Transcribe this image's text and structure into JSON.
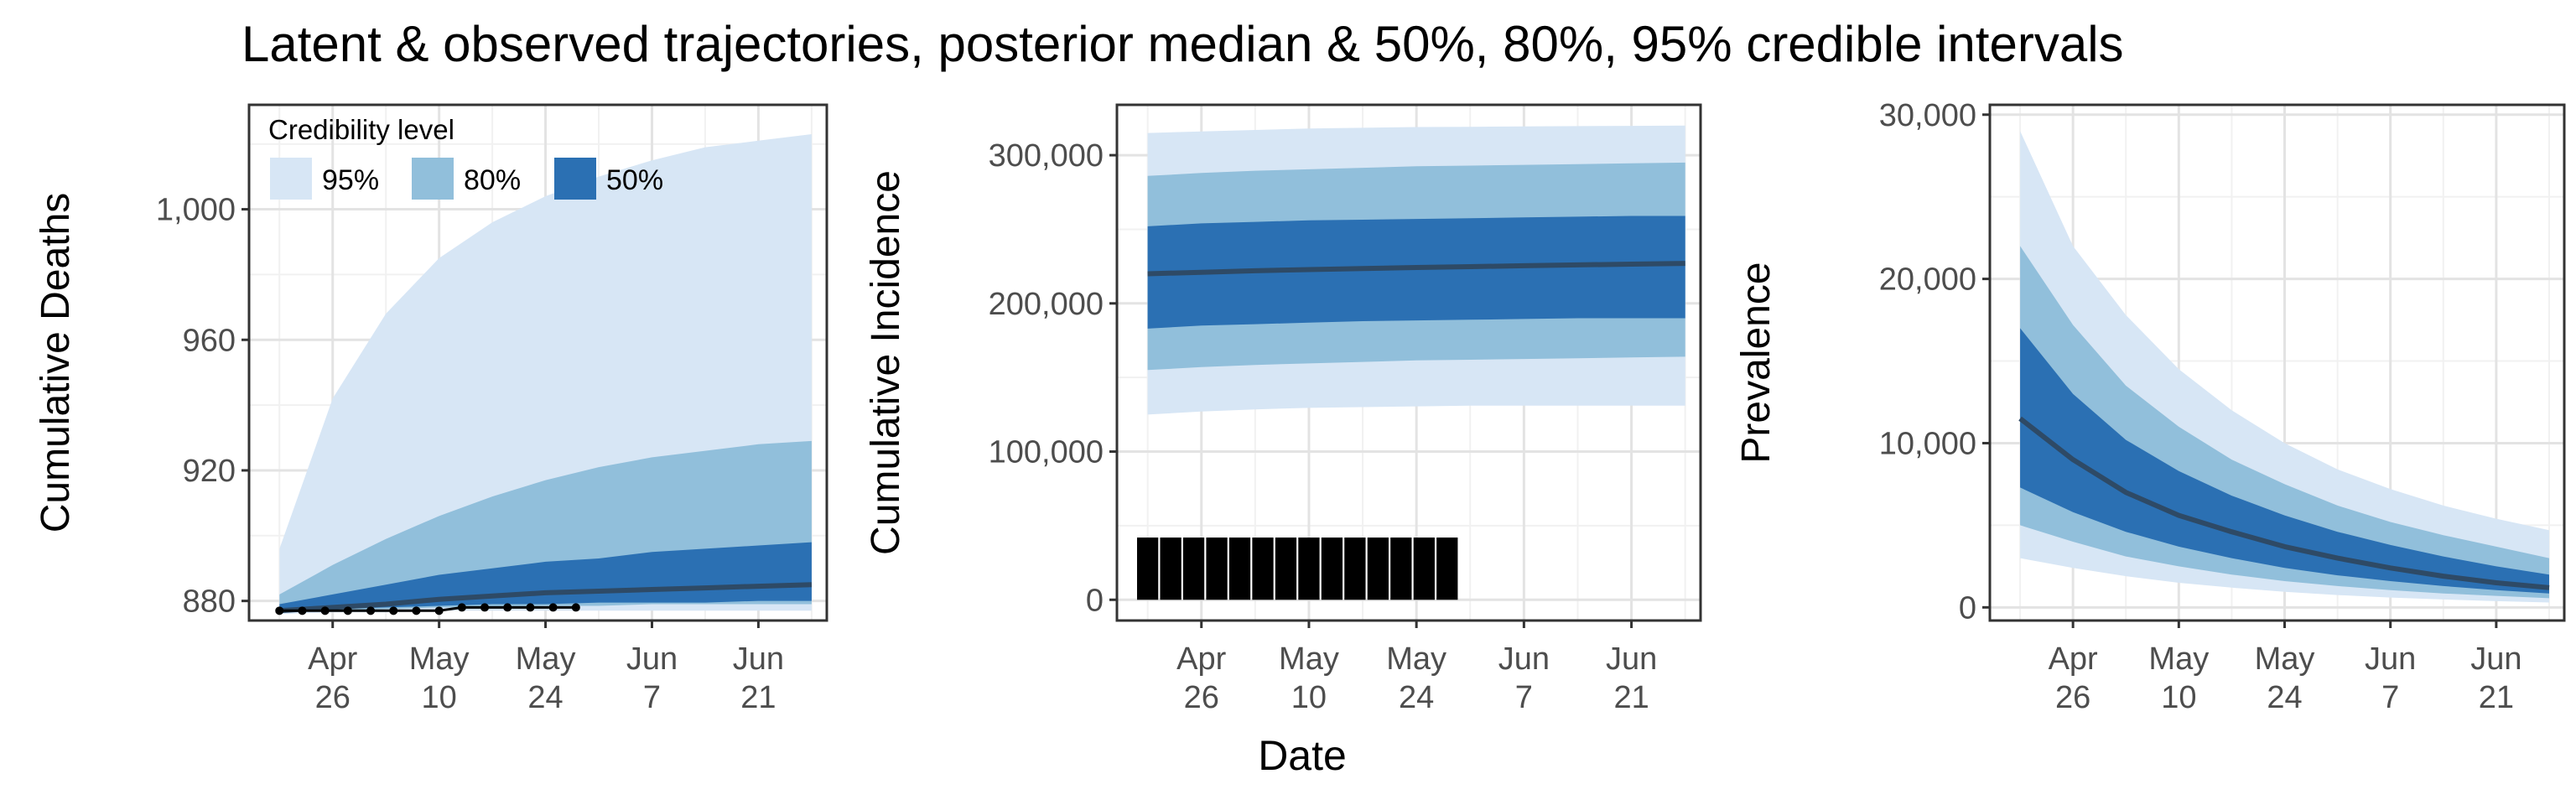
{
  "figure": {
    "title": "Latent & observed trajectories, posterior median & 50%, 80%, 95% credible intervals",
    "shared_xlabel": "Date"
  },
  "legend": {
    "title": "Credibility level",
    "entries": [
      {
        "label": "95%",
        "color": "#d7e6f5"
      },
      {
        "label": "80%",
        "color": "#91bfdb"
      },
      {
        "label": "50%",
        "color": "#2b70b3"
      }
    ]
  },
  "colors": {
    "band95": "#d7e6f5",
    "band80": "#91bfdb",
    "band50": "#2b70b3",
    "median": "#2e4a66",
    "observed": "#000000",
    "grid_major": "#e3e3e3",
    "grid_minor": "#f1f1f1",
    "panel_border": "#333333",
    "text": "#222222"
  },
  "chart_data": [
    {
      "type": "area",
      "ylabel": "Cumulative Deaths",
      "grid": true,
      "legend_position": "top-left",
      "x_dates": [
        "2020-04-19",
        "2020-04-26",
        "2020-05-03",
        "2020-05-10",
        "2020-05-17",
        "2020-05-24",
        "2020-05-31",
        "2020-06-07",
        "2020-06-14",
        "2020-06-21",
        "2020-06-28"
      ],
      "xlim": [
        "2020-04-15",
        "2020-06-30"
      ],
      "ylim": [
        874,
        1032
      ],
      "y_ticks": [
        880,
        920,
        960,
        1000
      ],
      "y_tick_labels": [
        "880",
        "920",
        "960",
        "1,000"
      ],
      "x_ticks": [
        "2020-04-26",
        "2020-05-10",
        "2020-05-24",
        "2020-06-07",
        "2020-06-21"
      ],
      "x_tick_labels": [
        [
          "Apr",
          "26"
        ],
        [
          "May",
          "10"
        ],
        [
          "May",
          "24"
        ],
        [
          "Jun",
          "7"
        ],
        [
          "Jun",
          "21"
        ]
      ],
      "band95": {
        "lower": [
          876,
          876.5,
          876.5,
          877,
          877,
          877,
          877,
          877,
          877,
          877,
          877
        ],
        "upper": [
          896,
          942,
          968,
          985,
          996,
          1004,
          1010,
          1015,
          1019,
          1021,
          1023
        ]
      },
      "band80": {
        "lower": [
          876.5,
          877,
          877.5,
          878,
          878,
          878.5,
          878.5,
          879,
          879,
          879,
          879
        ],
        "upper": [
          882,
          891,
          899,
          906,
          912,
          917,
          921,
          924,
          926,
          928,
          929
        ]
      },
      "band50": {
        "lower": [
          877,
          877.5,
          878,
          878.5,
          879,
          879,
          879.5,
          879.5,
          879.5,
          880,
          880
        ]
      },
      "band50_upper": [
        879,
        882,
        885,
        888,
        890,
        892,
        893,
        895,
        896,
        897,
        898
      ],
      "median": [
        877,
        878,
        879,
        880.5,
        881.5,
        882.5,
        883,
        883.5,
        884,
        884.5,
        885
      ],
      "observed": {
        "x": [
          "2020-04-19",
          "2020-04-22",
          "2020-04-25",
          "2020-04-28",
          "2020-05-01",
          "2020-05-04",
          "2020-05-07",
          "2020-05-10",
          "2020-05-13",
          "2020-05-16",
          "2020-05-19",
          "2020-05-22",
          "2020-05-25",
          "2020-05-28"
        ],
        "y": [
          877,
          877,
          877,
          877,
          877,
          877,
          877,
          877,
          878,
          878,
          878,
          878,
          878,
          878
        ]
      }
    },
    {
      "type": "area",
      "ylabel": "Cumulative Incidence",
      "grid": true,
      "x_dates": [
        "2020-04-19",
        "2020-04-26",
        "2020-05-03",
        "2020-05-10",
        "2020-05-17",
        "2020-05-24",
        "2020-05-31",
        "2020-06-07",
        "2020-06-14",
        "2020-06-21",
        "2020-06-28"
      ],
      "xlim": [
        "2020-04-15",
        "2020-06-30"
      ],
      "ylim": [
        -14000,
        334000
      ],
      "y_ticks": [
        0,
        100000,
        200000,
        300000
      ],
      "y_tick_labels": [
        "0",
        "100,000",
        "200,000",
        "300,000"
      ],
      "x_ticks": [
        "2020-04-26",
        "2020-05-10",
        "2020-05-24",
        "2020-06-07",
        "2020-06-21"
      ],
      "x_tick_labels": [
        [
          "Apr",
          "26"
        ],
        [
          "May",
          "10"
        ],
        [
          "May",
          "24"
        ],
        [
          "Jun",
          "7"
        ],
        [
          "Jun",
          "21"
        ]
      ],
      "band95": {
        "lower": [
          125000,
          127000,
          128500,
          129500,
          130000,
          130500,
          131000,
          131000,
          131000,
          131000,
          131000
        ],
        "upper": [
          315000,
          316000,
          317000,
          318000,
          318500,
          319000,
          319200,
          319400,
          319600,
          319800,
          320000
        ]
      },
      "band80": {
        "lower": [
          155000,
          157000,
          158500,
          159500,
          160500,
          161500,
          162000,
          162500,
          163000,
          163500,
          164000
        ],
        "upper": [
          286000,
          288000,
          289500,
          290500,
          291500,
          292500,
          293000,
          293500,
          294000,
          294500,
          295000
        ]
      },
      "band50": {
        "lower": [
          183000,
          185000,
          186000,
          187000,
          188000,
          188500,
          189000,
          189500,
          190000,
          190000,
          190000
        ]
      },
      "band50_upper": [
        252000,
        254000,
        255000,
        256000,
        256500,
        257000,
        257500,
        258000,
        258500,
        259000,
        259000
      ],
      "median": [
        220000,
        221000,
        222000,
        222800,
        223500,
        224200,
        224800,
        225400,
        226000,
        226500,
        227000
      ],
      "observed_bars": {
        "x": [
          "2020-04-19",
          "2020-04-22",
          "2020-04-25",
          "2020-04-28",
          "2020-05-01",
          "2020-05-04",
          "2020-05-07",
          "2020-05-10",
          "2020-05-13",
          "2020-05-16",
          "2020-05-19",
          "2020-05-22",
          "2020-05-25",
          "2020-05-28"
        ],
        "y": [
          42000,
          42000,
          42000,
          42000,
          42000,
          42000,
          42000,
          42000,
          42000,
          42000,
          42000,
          42000,
          42000,
          42000
        ]
      }
    },
    {
      "type": "area",
      "ylabel": "Prevalence",
      "grid": true,
      "x_dates": [
        "2020-04-19",
        "2020-04-26",
        "2020-05-03",
        "2020-05-10",
        "2020-05-17",
        "2020-05-24",
        "2020-05-31",
        "2020-06-07",
        "2020-06-14",
        "2020-06-21",
        "2020-06-28"
      ],
      "xlim": [
        "2020-04-15",
        "2020-06-30"
      ],
      "ylim": [
        -800,
        30600
      ],
      "y_ticks": [
        0,
        10000,
        20000,
        30000
      ],
      "y_tick_labels": [
        "0",
        "10,000",
        "20,000",
        "30,000"
      ],
      "x_ticks": [
        "2020-04-26",
        "2020-05-10",
        "2020-05-24",
        "2020-06-07",
        "2020-06-21"
      ],
      "x_tick_labels": [
        [
          "Apr",
          "26"
        ],
        [
          "May",
          "10"
        ],
        [
          "May",
          "24"
        ],
        [
          "Jun",
          "7"
        ],
        [
          "Jun",
          "21"
        ]
      ],
      "band95": {
        "lower": [
          3000,
          2400,
          1900,
          1500,
          1200,
          950,
          750,
          600,
          480,
          380,
          300
        ],
        "upper": [
          29000,
          22000,
          17800,
          14500,
          12000,
          10000,
          8400,
          7200,
          6200,
          5400,
          4700
        ]
      },
      "band80": {
        "lower": [
          5000,
          4000,
          3100,
          2500,
          2000,
          1600,
          1300,
          1050,
          850,
          700,
          560
        ],
        "upper": [
          22000,
          17200,
          13500,
          11000,
          9000,
          7500,
          6200,
          5200,
          4400,
          3700,
          3000
        ]
      },
      "band50": {
        "lower": [
          7300,
          5800,
          4600,
          3700,
          3000,
          2400,
          1950,
          1600,
          1300,
          1050,
          850
        ]
      },
      "band50_upper": [
        17000,
        13000,
        10200,
        8300,
        6800,
        5600,
        4600,
        3800,
        3100,
        2500,
        2000
      ],
      "median": [
        11500,
        9000,
        7000,
        5600,
        4600,
        3700,
        3000,
        2400,
        1900,
        1500,
        1200
      ]
    }
  ]
}
